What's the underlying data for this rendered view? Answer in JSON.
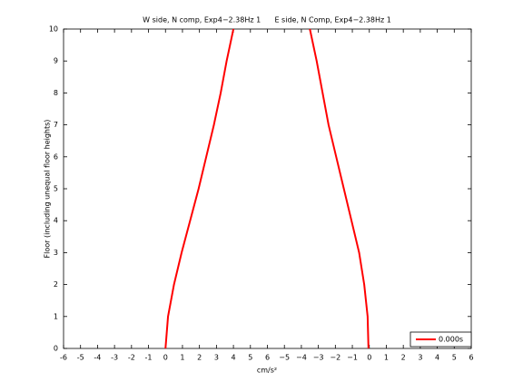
{
  "chart_data": {
    "type": "line",
    "title": "W side, N comp, Exp4−2.38Hz 1      E side, N Comp, Exp4−2.38Hz 1",
    "xlabel": "cm/s²",
    "ylabel": "Floor (including unequal floor heights)",
    "series": [
      {
        "name": "0.000s",
        "color": "#ff0000",
        "x": [
          0.0,
          0.15,
          0.5,
          0.95,
          1.45,
          1.95,
          2.4,
          2.85,
          3.25,
          3.6,
          4.0
        ],
        "values": [
          0,
          1,
          2,
          3,
          4,
          5,
          6,
          7,
          8,
          9,
          10
        ]
      },
      {
        "color": "#ff0000",
        "x": [
          11.95,
          11.9,
          11.7,
          11.4,
          10.95,
          10.5,
          10.05,
          9.6,
          9.25,
          8.9,
          8.5
        ],
        "values": [
          0,
          1,
          2,
          3,
          4,
          5,
          6,
          7,
          8,
          9,
          10
        ]
      }
    ],
    "xlim": [
      -6,
      18
    ],
    "xticks": [
      -6,
      -5,
      -4,
      -3,
      -2,
      -1,
      0,
      1,
      2,
      3,
      4,
      5,
      6,
      {
        "value": 7,
        "label": "−5"
      },
      {
        "value": 8,
        "label": "−4"
      },
      {
        "value": 9,
        "label": "−3"
      },
      {
        "value": 10,
        "label": "−2"
      },
      {
        "value": 11,
        "label": "−1"
      },
      {
        "value": 12,
        "label": "0"
      },
      {
        "value": 13,
        "label": "1"
      },
      {
        "value": 14,
        "label": "2"
      },
      {
        "value": 15,
        "label": "3"
      },
      {
        "value": 16,
        "label": "4"
      },
      {
        "value": 17,
        "label": "5"
      },
      {
        "value": 18,
        "label": "6"
      }
    ],
    "ylim": [
      0,
      10
    ],
    "yticks": [
      0,
      1,
      2,
      3,
      4,
      5,
      6,
      7,
      8,
      9,
      10
    ],
    "legend": "lower right"
  }
}
